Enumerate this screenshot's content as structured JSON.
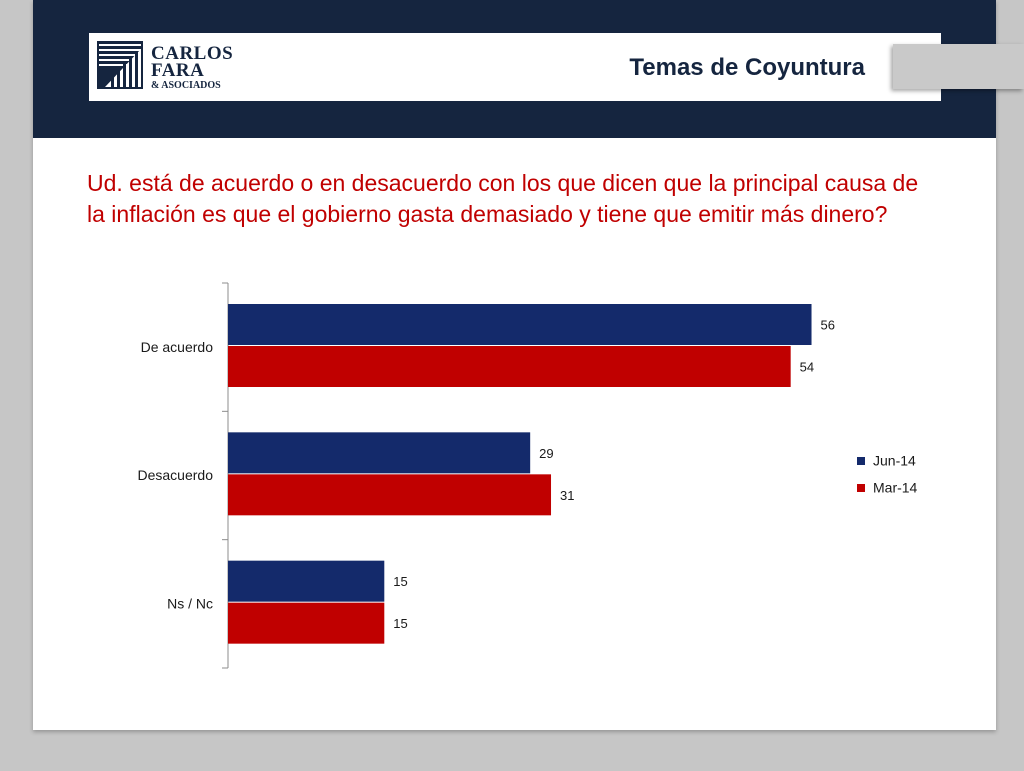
{
  "header": {
    "logo": {
      "line1": "CARLOS",
      "line2": "FARA",
      "line3": "& ASOCIADOS"
    },
    "title": "Temas de Coyuntura"
  },
  "question": "Ud. está de acuerdo o en desacuerdo con los que dicen que la principal causa de la inflación es que el gobierno gasta demasiado y tiene que emitir más dinero?",
  "colors": {
    "navy": "#15253f",
    "series_jun": "#142a6b",
    "series_mar": "#c00000"
  },
  "chart_data": {
    "type": "bar",
    "orientation": "horizontal",
    "categories": [
      "De acuerdo",
      "Desacuerdo",
      "Ns / Nc"
    ],
    "series": [
      {
        "name": "Jun-14",
        "values": [
          56,
          29,
          15
        ],
        "color": "#142a6b"
      },
      {
        "name": "Mar-14",
        "values": [
          54,
          31,
          15
        ],
        "color": "#c00000"
      }
    ],
    "xlim": [
      0,
      70
    ],
    "grid": false,
    "legend_position": "right",
    "data_labels": true
  }
}
